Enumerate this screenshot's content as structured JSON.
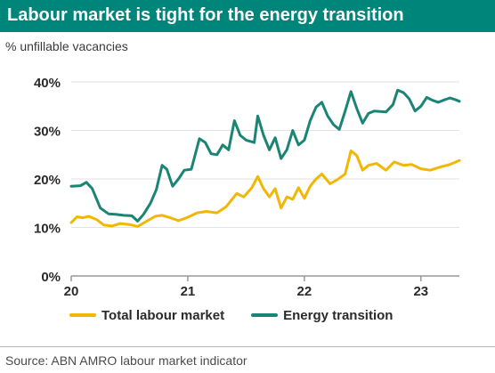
{
  "title": "Labour market is tight for the energy transition",
  "subtitle": "% unfillable vacancies",
  "source": "Source: ABN AMRO labour market indicator",
  "colors": {
    "title_bg": "#00857a",
    "total": "#f2b705",
    "energy": "#1a8475",
    "axis": "#999999"
  },
  "chart_data": {
    "type": "line",
    "title": "Labour market is tight for the energy transition",
    "subtitle": "% unfillable vacancies",
    "xlabel": "",
    "ylabel": "",
    "xlim": [
      20.0,
      23.33
    ],
    "ylim": [
      0,
      40
    ],
    "x_ticks": [
      20,
      21,
      22,
      23
    ],
    "x_tick_labels": [
      "20",
      "21",
      "22",
      "23"
    ],
    "y_ticks": [
      0,
      10,
      20,
      30,
      40
    ],
    "y_tick_labels": [
      "0%",
      "10%",
      "20%",
      "30%",
      "40%"
    ],
    "grid": "horizontal",
    "legend": "bottom",
    "series": [
      {
        "name": "Total labour market",
        "color": "#f2b705",
        "points": [
          [
            20.0,
            11.0
          ],
          [
            20.05,
            12.2
          ],
          [
            20.1,
            12.0
          ],
          [
            20.15,
            12.3
          ],
          [
            20.22,
            11.6
          ],
          [
            20.28,
            10.5
          ],
          [
            20.35,
            10.3
          ],
          [
            20.42,
            10.8
          ],
          [
            20.5,
            10.6
          ],
          [
            20.57,
            10.2
          ],
          [
            20.64,
            11.2
          ],
          [
            20.72,
            12.3
          ],
          [
            20.78,
            12.5
          ],
          [
            20.85,
            12.0
          ],
          [
            20.92,
            11.4
          ],
          [
            21.0,
            12.1
          ],
          [
            21.08,
            13.0
          ],
          [
            21.16,
            13.3
          ],
          [
            21.25,
            13.0
          ],
          [
            21.33,
            14.3
          ],
          [
            21.42,
            17.0
          ],
          [
            21.48,
            16.3
          ],
          [
            21.55,
            18.2
          ],
          [
            21.6,
            20.5
          ],
          [
            21.65,
            18.0
          ],
          [
            21.7,
            16.3
          ],
          [
            21.75,
            18.0
          ],
          [
            21.8,
            14.0
          ],
          [
            21.85,
            16.3
          ],
          [
            21.9,
            15.8
          ],
          [
            21.95,
            18.2
          ],
          [
            22.0,
            16.0
          ],
          [
            22.05,
            18.5
          ],
          [
            22.1,
            20.0
          ],
          [
            22.15,
            21.0
          ],
          [
            22.22,
            19.0
          ],
          [
            22.28,
            19.8
          ],
          [
            22.35,
            21.0
          ],
          [
            22.4,
            25.8
          ],
          [
            22.45,
            24.8
          ],
          [
            22.5,
            21.8
          ],
          [
            22.55,
            22.8
          ],
          [
            22.62,
            23.2
          ],
          [
            22.7,
            21.8
          ],
          [
            22.77,
            23.5
          ],
          [
            22.85,
            22.8
          ],
          [
            22.92,
            23.0
          ],
          [
            23.0,
            22.1
          ],
          [
            23.08,
            21.8
          ],
          [
            23.17,
            22.5
          ],
          [
            23.25,
            23.0
          ],
          [
            23.33,
            23.8
          ]
        ]
      },
      {
        "name": "Energy transition",
        "color": "#1a8475",
        "points": [
          [
            20.0,
            18.5
          ],
          [
            20.08,
            18.6
          ],
          [
            20.13,
            19.3
          ],
          [
            20.18,
            18.0
          ],
          [
            20.25,
            14.0
          ],
          [
            20.32,
            12.8
          ],
          [
            20.38,
            12.7
          ],
          [
            20.45,
            12.5
          ],
          [
            20.52,
            12.4
          ],
          [
            20.57,
            11.3
          ],
          [
            20.62,
            12.7
          ],
          [
            20.68,
            15.0
          ],
          [
            20.73,
            17.8
          ],
          [
            20.78,
            22.8
          ],
          [
            20.82,
            22.0
          ],
          [
            20.87,
            18.5
          ],
          [
            20.92,
            20.0
          ],
          [
            20.97,
            21.8
          ],
          [
            21.03,
            22.0
          ],
          [
            21.1,
            28.3
          ],
          [
            21.15,
            27.5
          ],
          [
            21.2,
            25.2
          ],
          [
            21.25,
            25.0
          ],
          [
            21.3,
            27.0
          ],
          [
            21.35,
            26.0
          ],
          [
            21.4,
            32.0
          ],
          [
            21.45,
            29.0
          ],
          [
            21.5,
            28.0
          ],
          [
            21.57,
            27.5
          ],
          [
            21.6,
            33.0
          ],
          [
            21.65,
            29.0
          ],
          [
            21.7,
            26.0
          ],
          [
            21.75,
            28.5
          ],
          [
            21.8,
            24.2
          ],
          [
            21.85,
            26.0
          ],
          [
            21.9,
            30.0
          ],
          [
            21.95,
            27.0
          ],
          [
            22.0,
            28.0
          ],
          [
            22.05,
            32.0
          ],
          [
            22.1,
            34.8
          ],
          [
            22.15,
            35.8
          ],
          [
            22.2,
            33.0
          ],
          [
            22.25,
            31.2
          ],
          [
            22.3,
            30.2
          ],
          [
            22.35,
            34.0
          ],
          [
            22.4,
            38.0
          ],
          [
            22.45,
            34.5
          ],
          [
            22.5,
            31.5
          ],
          [
            22.55,
            33.5
          ],
          [
            22.6,
            34.0
          ],
          [
            22.7,
            33.8
          ],
          [
            22.76,
            35.3
          ],
          [
            22.8,
            38.3
          ],
          [
            22.85,
            37.8
          ],
          [
            22.9,
            36.5
          ],
          [
            22.95,
            34.0
          ],
          [
            23.0,
            35.0
          ],
          [
            23.05,
            36.8
          ],
          [
            23.1,
            36.2
          ],
          [
            23.15,
            35.8
          ],
          [
            23.2,
            36.3
          ],
          [
            23.25,
            36.7
          ],
          [
            23.3,
            36.3
          ],
          [
            23.33,
            36.0
          ]
        ]
      }
    ]
  }
}
